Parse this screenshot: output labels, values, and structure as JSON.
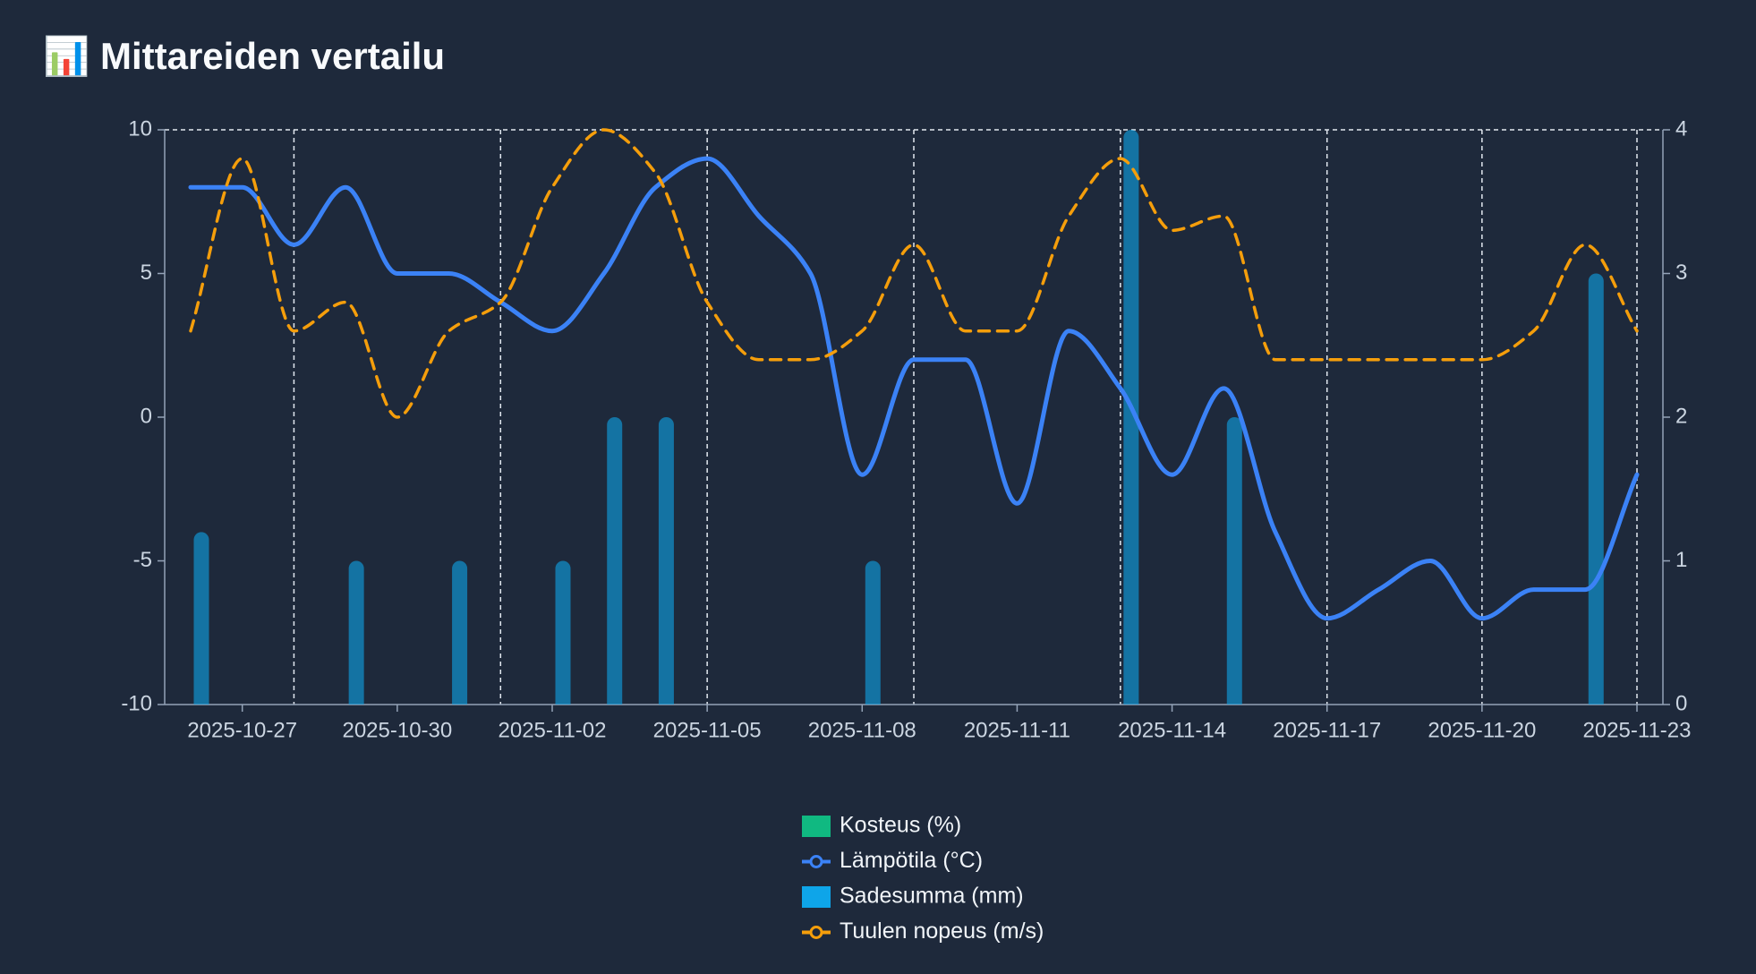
{
  "chart_data": {
    "type": "combo",
    "title": "📊 Mittareiden vertailu",
    "x": [
      "2025-10-26",
      "2025-10-27",
      "2025-10-28",
      "2025-10-29",
      "2025-10-30",
      "2025-10-31",
      "2025-11-01",
      "2025-11-02",
      "2025-11-03",
      "2025-11-04",
      "2025-11-05",
      "2025-11-06",
      "2025-11-07",
      "2025-11-08",
      "2025-11-09",
      "2025-11-10",
      "2025-11-11",
      "2025-11-12",
      "2025-11-13",
      "2025-11-14",
      "2025-11-15",
      "2025-11-16",
      "2025-11-17",
      "2025-11-18",
      "2025-11-19",
      "2025-11-20",
      "2025-11-21",
      "2025-11-22",
      "2025-11-23"
    ],
    "xlim": [
      "2025-10-26",
      "2025-11-23"
    ],
    "xticks": [
      "2025-10-27",
      "2025-10-30",
      "2025-11-02",
      "2025-11-05",
      "2025-11-08",
      "2025-11-11",
      "2025-11-14",
      "2025-11-17",
      "2025-11-20",
      "2025-11-23"
    ],
    "xgrid": [
      "2025-10-28",
      "2025-11-01",
      "2025-11-05",
      "2025-11-09",
      "2025-11-13",
      "2025-11-17",
      "2025-11-20",
      "2025-11-23"
    ],
    "ylim": [
      -10,
      10
    ],
    "yticks": [
      -10,
      -5,
      0,
      5,
      10
    ],
    "y2lim": [
      0,
      4
    ],
    "y2ticks": [
      0,
      1,
      2,
      3,
      4
    ],
    "grid": true,
    "legend": "bottom",
    "series": [
      {
        "name": "Kosteus (%)",
        "kind": "bar",
        "color": "#10b981",
        "values": [
          null,
          null,
          null,
          null,
          null,
          null,
          null,
          null,
          null,
          null,
          null,
          null,
          null,
          null,
          null,
          null,
          null,
          null,
          null,
          null,
          null,
          null,
          null,
          null,
          null,
          null,
          null,
          null,
          null
        ]
      },
      {
        "name": "Lämpötila (°C)",
        "kind": "line",
        "color": "#3b82f6",
        "values": [
          8,
          8,
          6,
          8,
          5,
          5,
          4,
          3,
          5,
          8,
          9,
          7,
          5,
          -2,
          2,
          2,
          -3,
          3,
          1,
          -2,
          1,
          -4,
          -7,
          -6,
          -5,
          -7,
          -6,
          -6,
          -2
        ]
      },
      {
        "name": "Sadesumma (mm)",
        "kind": "bar",
        "axis": "y2",
        "color": "#0ea5e9",
        "values": [
          1.2,
          0,
          0,
          1,
          0,
          1,
          0,
          1,
          2,
          2,
          0,
          0,
          0,
          1,
          0,
          0,
          0,
          0,
          4,
          0,
          2,
          0,
          0,
          0,
          0,
          0,
          0,
          3,
          0
        ]
      },
      {
        "name": "Tuulen nopeus (m/s)",
        "kind": "line",
        "axis": "y2",
        "dashed": true,
        "color": "#f59e0b",
        "values": [
          2.6,
          3.8,
          2.6,
          2.8,
          2.0,
          2.6,
          2.8,
          3.6,
          4.0,
          3.7,
          2.8,
          2.4,
          2.4,
          2.6,
          3.2,
          2.6,
          2.6,
          3.4,
          3.8,
          3.3,
          3.4,
          2.4,
          2.4,
          2.4,
          2.4,
          2.4,
          2.6,
          3.2,
          2.6
        ]
      }
    ]
  }
}
